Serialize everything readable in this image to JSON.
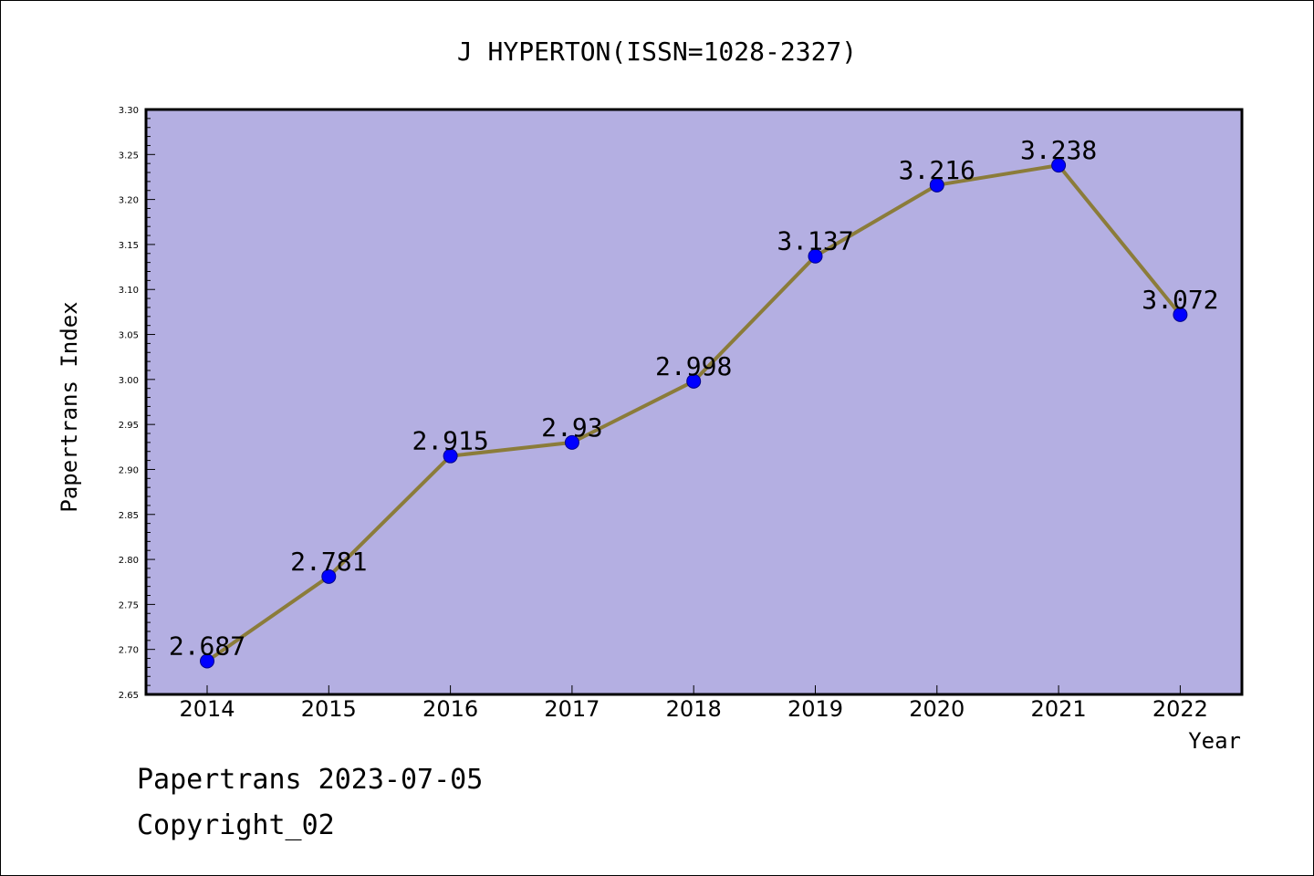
{
  "chart_data": {
    "type": "line",
    "title": "J HYPERTON(ISSN=1028-2327)",
    "xlabel": "Year",
    "ylabel": "Papertrans Index",
    "categories": [
      "2014",
      "2015",
      "2016",
      "2017",
      "2018",
      "2019",
      "2020",
      "2021",
      "2022"
    ],
    "series": [
      {
        "values": [
          2.687,
          2.781,
          2.915,
          2.93,
          2.998,
          3.137,
          3.216,
          3.238,
          3.072
        ],
        "data_labels": [
          "2.687",
          "2.781",
          "2.915",
          "2.93",
          "2.998",
          "3.137",
          "3.216",
          "3.238",
          "3.072"
        ]
      }
    ],
    "ylim": [
      2.65,
      3.3
    ],
    "yticks": [
      "2.65",
      "2.70",
      "2.75",
      "2.80",
      "2.85",
      "2.90",
      "2.95",
      "3.00",
      "3.05",
      "3.10",
      "3.15",
      "3.20",
      "3.25",
      "3.30"
    ],
    "grid": false,
    "legend": "none"
  },
  "footer": {
    "date_line": "Papertrans 2023-07-05",
    "copyright_line": "Copyright_02"
  },
  "colors": {
    "plot_background": "#b4afe2",
    "line": "#8b7c3a",
    "marker_fill": "#0000ff",
    "marker_stroke": "#00008b",
    "axis": "#000000"
  }
}
